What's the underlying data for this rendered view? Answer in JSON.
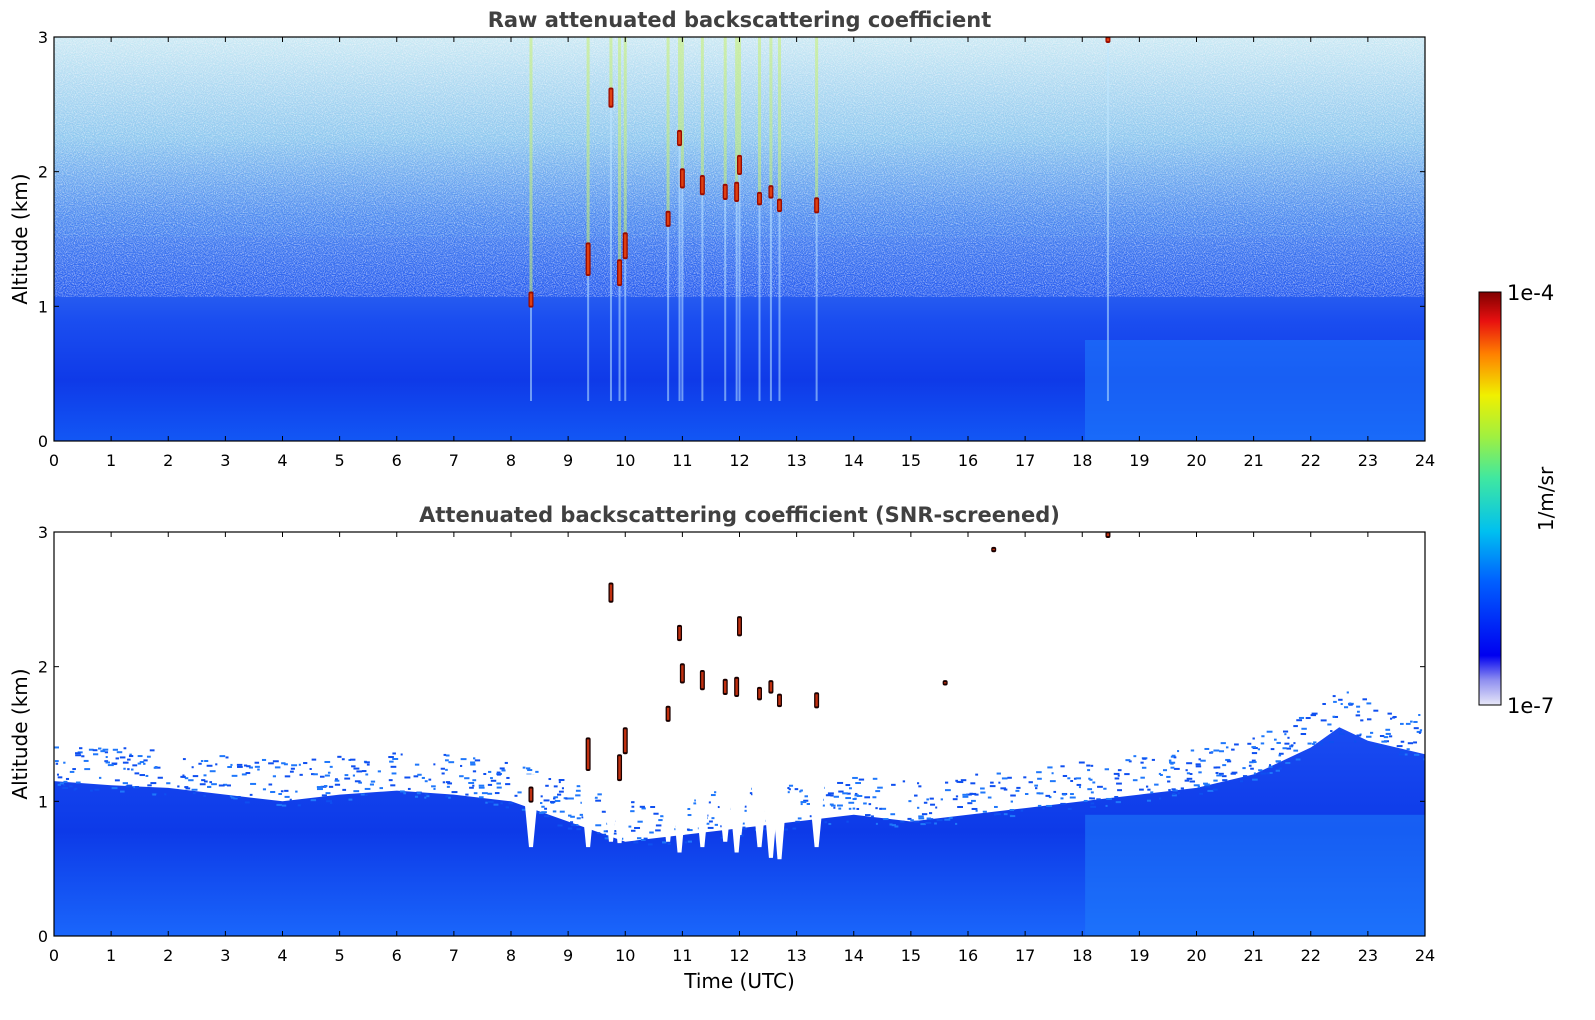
{
  "chart_data": [
    {
      "type": "heatmap",
      "title": "Raw attenuated backscattering coefficient",
      "xlabel": "",
      "ylabel": "Altitude (km)",
      "xlim": [
        0,
        24
      ],
      "ylim": [
        0,
        3
      ],
      "xticks": [
        "0",
        "1",
        "2",
        "3",
        "4",
        "5",
        "6",
        "7",
        "8",
        "9",
        "10",
        "11",
        "12",
        "13",
        "14",
        "15",
        "16",
        "17",
        "18",
        "19",
        "20",
        "21",
        "22",
        "23",
        "24"
      ],
      "yticks": [
        "0",
        "1",
        "2",
        "3"
      ],
      "screened": false,
      "cloud_features": [
        {
          "time": 8.35,
          "alt": 1.05,
          "depth": 0.12
        },
        {
          "time": 9.35,
          "alt": 1.35,
          "depth": 0.25
        },
        {
          "time": 9.75,
          "alt": 2.55,
          "depth": 0.15
        },
        {
          "time": 9.9,
          "alt": 1.25,
          "depth": 0.2
        },
        {
          "time": 10.0,
          "alt": 1.45,
          "depth": 0.2
        },
        {
          "time": 10.75,
          "alt": 1.65,
          "depth": 0.12
        },
        {
          "time": 10.95,
          "alt": 2.25,
          "depth": 0.12
        },
        {
          "time": 11.0,
          "alt": 1.95,
          "depth": 0.15
        },
        {
          "time": 11.35,
          "alt": 1.9,
          "depth": 0.15
        },
        {
          "time": 11.75,
          "alt": 1.85,
          "depth": 0.12
        },
        {
          "time": 11.95,
          "alt": 1.85,
          "depth": 0.15
        },
        {
          "time": 12.0,
          "alt": 2.05,
          "depth": 0.15
        },
        {
          "time": 12.35,
          "alt": 1.8,
          "depth": 0.1
        },
        {
          "time": 12.55,
          "alt": 1.85,
          "depth": 0.1
        },
        {
          "time": 12.7,
          "alt": 1.75,
          "depth": 0.1
        },
        {
          "time": 13.35,
          "alt": 1.75,
          "depth": 0.12
        },
        {
          "time": 18.45,
          "alt": 2.98,
          "depth": 0.05
        }
      ]
    },
    {
      "type": "heatmap",
      "title": "Attenuated backscattering coefficient (SNR-screened)",
      "xlabel": "Time (UTC)",
      "ylabel": "Altitude (km)",
      "xlim": [
        0,
        24
      ],
      "ylim": [
        0,
        3
      ],
      "xticks": [
        "0",
        "1",
        "2",
        "3",
        "4",
        "5",
        "6",
        "7",
        "8",
        "9",
        "10",
        "11",
        "12",
        "13",
        "14",
        "15",
        "16",
        "17",
        "18",
        "19",
        "20",
        "21",
        "22",
        "23",
        "24"
      ],
      "yticks": [
        "0",
        "1",
        "2",
        "3"
      ],
      "screened": true,
      "boundary_layer_top_km": [
        {
          "time": 0,
          "alt": 1.15
        },
        {
          "time": 1,
          "alt": 1.12
        },
        {
          "time": 2,
          "alt": 1.1
        },
        {
          "time": 3,
          "alt": 1.05
        },
        {
          "time": 4,
          "alt": 1.0
        },
        {
          "time": 5,
          "alt": 1.05
        },
        {
          "time": 6,
          "alt": 1.08
        },
        {
          "time": 7,
          "alt": 1.05
        },
        {
          "time": 8,
          "alt": 1.0
        },
        {
          "time": 9,
          "alt": 0.85
        },
        {
          "time": 10,
          "alt": 0.7
        },
        {
          "time": 11,
          "alt": 0.75
        },
        {
          "time": 12,
          "alt": 0.8
        },
        {
          "time": 13,
          "alt": 0.85
        },
        {
          "time": 14,
          "alt": 0.9
        },
        {
          "time": 15,
          "alt": 0.85
        },
        {
          "time": 16,
          "alt": 0.9
        },
        {
          "time": 17,
          "alt": 0.95
        },
        {
          "time": 18,
          "alt": 1.0
        },
        {
          "time": 19,
          "alt": 1.05
        },
        {
          "time": 20,
          "alt": 1.1
        },
        {
          "time": 21,
          "alt": 1.2
        },
        {
          "time": 22,
          "alt": 1.4
        },
        {
          "time": 22.5,
          "alt": 1.55
        },
        {
          "time": 23,
          "alt": 1.45
        },
        {
          "time": 24,
          "alt": 1.35
        }
      ],
      "cloud_features": [
        {
          "time": 8.35,
          "alt": 1.05,
          "depth": 0.12
        },
        {
          "time": 9.35,
          "alt": 1.35,
          "depth": 0.25
        },
        {
          "time": 9.75,
          "alt": 2.55,
          "depth": 0.15
        },
        {
          "time": 9.9,
          "alt": 1.25,
          "depth": 0.2
        },
        {
          "time": 10.0,
          "alt": 1.45,
          "depth": 0.2
        },
        {
          "time": 10.75,
          "alt": 1.65,
          "depth": 0.12
        },
        {
          "time": 10.95,
          "alt": 2.25,
          "depth": 0.12
        },
        {
          "time": 11.0,
          "alt": 1.95,
          "depth": 0.15
        },
        {
          "time": 11.35,
          "alt": 1.9,
          "depth": 0.15
        },
        {
          "time": 11.75,
          "alt": 1.85,
          "depth": 0.12
        },
        {
          "time": 11.95,
          "alt": 1.85,
          "depth": 0.15
        },
        {
          "time": 12.0,
          "alt": 2.3,
          "depth": 0.15
        },
        {
          "time": 12.35,
          "alt": 1.8,
          "depth": 0.1
        },
        {
          "time": 12.55,
          "alt": 1.85,
          "depth": 0.1
        },
        {
          "time": 12.7,
          "alt": 1.75,
          "depth": 0.1
        },
        {
          "time": 13.35,
          "alt": 1.75,
          "depth": 0.12
        },
        {
          "time": 15.6,
          "alt": 1.88,
          "depth": 0.04
        },
        {
          "time": 16.45,
          "alt": 2.87,
          "depth": 0.04
        },
        {
          "time": 18.45,
          "alt": 2.98,
          "depth": 0.05
        }
      ]
    }
  ],
  "colorbar": {
    "label": "1/m/sr",
    "max_label": "1e-4",
    "min_label": "1e-7",
    "scale": "log",
    "colormap": "jet"
  }
}
